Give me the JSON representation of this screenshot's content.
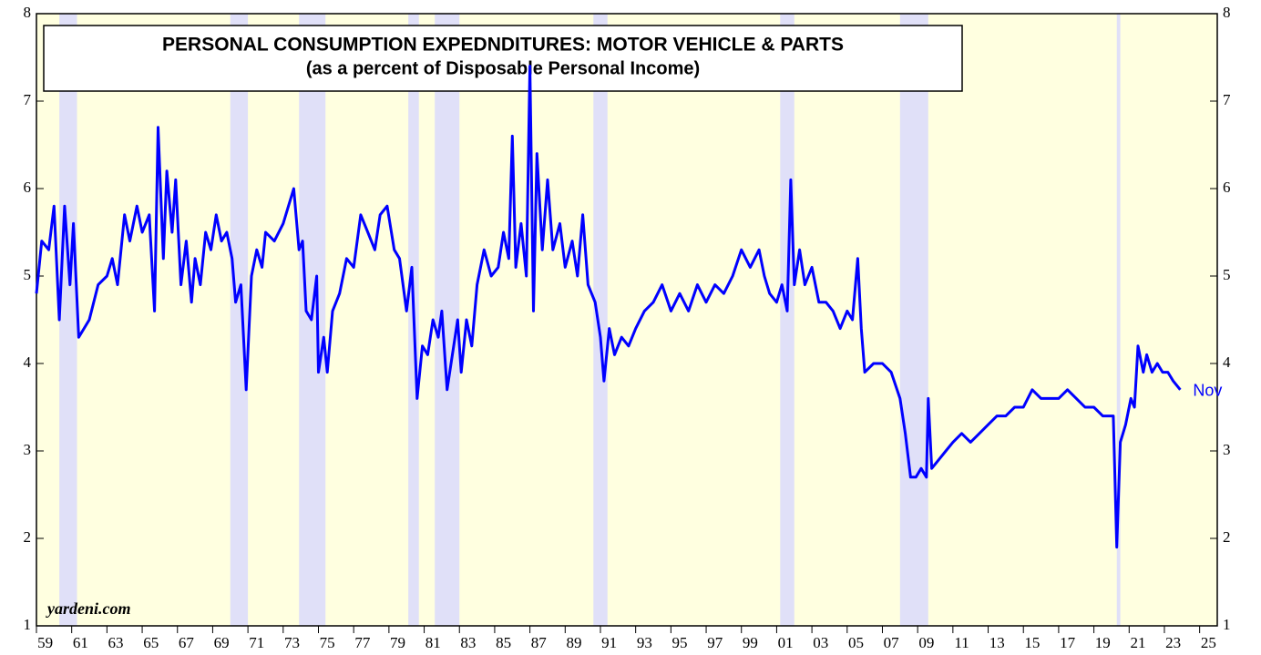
{
  "chart_data": {
    "type": "line",
    "title": "PERSONAL CONSUMPTION EXPEDNDITURES: MOTOR VEHICLE & PARTS",
    "subtitle": "(as a percent of Disposable Personal Income)",
    "source": "yardeni.com",
    "annotation": "Nov",
    "color": "#0000ff",
    "grid": false,
    "xlim": [
      1959,
      2026
    ],
    "ylim": [
      1,
      8
    ],
    "yticks": [
      1,
      2,
      3,
      4,
      5,
      6,
      7,
      8
    ],
    "xticks": [
      {
        "value": 1959,
        "label": "59"
      },
      {
        "value": 1961,
        "label": "61"
      },
      {
        "value": 1963,
        "label": "63"
      },
      {
        "value": 1965,
        "label": "65"
      },
      {
        "value": 1967,
        "label": "67"
      },
      {
        "value": 1969,
        "label": "69"
      },
      {
        "value": 1971,
        "label": "71"
      },
      {
        "value": 1973,
        "label": "73"
      },
      {
        "value": 1975,
        "label": "75"
      },
      {
        "value": 1977,
        "label": "77"
      },
      {
        "value": 1979,
        "label": "79"
      },
      {
        "value": 1981,
        "label": "81"
      },
      {
        "value": 1983,
        "label": "83"
      },
      {
        "value": 1985,
        "label": "85"
      },
      {
        "value": 1987,
        "label": "87"
      },
      {
        "value": 1989,
        "label": "89"
      },
      {
        "value": 1991,
        "label": "91"
      },
      {
        "value": 1993,
        "label": "93"
      },
      {
        "value": 1995,
        "label": "95"
      },
      {
        "value": 1997,
        "label": "97"
      },
      {
        "value": 1999,
        "label": "99"
      },
      {
        "value": 2001,
        "label": "01"
      },
      {
        "value": 2003,
        "label": "03"
      },
      {
        "value": 2005,
        "label": "05"
      },
      {
        "value": 2007,
        "label": "07"
      },
      {
        "value": 2009,
        "label": "09"
      },
      {
        "value": 2011,
        "label": "11"
      },
      {
        "value": 2013,
        "label": "13"
      },
      {
        "value": 2015,
        "label": "15"
      },
      {
        "value": 2017,
        "label": "17"
      },
      {
        "value": 2019,
        "label": "19"
      },
      {
        "value": 2021,
        "label": "21"
      },
      {
        "value": 2023,
        "label": "23"
      },
      {
        "value": 2025,
        "label": "25"
      }
    ],
    "recessions": [
      [
        1960.3,
        1961.3
      ],
      [
        1970.0,
        1971.0
      ],
      [
        1973.9,
        1975.4
      ],
      [
        1980.1,
        1980.7
      ],
      [
        1981.6,
        1983.0
      ],
      [
        1990.6,
        1991.4
      ],
      [
        2001.2,
        2002.0
      ],
      [
        2008.0,
        2009.6
      ],
      [
        2020.3,
        2020.5
      ]
    ],
    "x": [
      1959.0,
      1959.3,
      1959.7,
      1960.0,
      1960.3,
      1960.6,
      1960.9,
      1961.1,
      1961.4,
      1961.7,
      1962.0,
      1962.5,
      1963.0,
      1963.3,
      1963.6,
      1964.0,
      1964.3,
      1964.7,
      1965.0,
      1965.4,
      1965.7,
      1965.9,
      1966.2,
      1966.4,
      1966.7,
      1966.9,
      1967.2,
      1967.5,
      1967.8,
      1968.0,
      1968.3,
      1968.6,
      1968.9,
      1969.2,
      1969.5,
      1969.8,
      1970.1,
      1970.3,
      1970.6,
      1970.9,
      1971.2,
      1971.5,
      1971.8,
      1972.0,
      1972.5,
      1973.0,
      1973.3,
      1973.6,
      1973.9,
      1974.1,
      1974.3,
      1974.6,
      1974.9,
      1975.0,
      1975.3,
      1975.5,
      1975.8,
      1976.2,
      1976.6,
      1977.0,
      1977.4,
      1977.8,
      1978.2,
      1978.5,
      1978.9,
      1979.3,
      1979.6,
      1980.0,
      1980.3,
      1980.6,
      1980.9,
      1981.2,
      1981.5,
      1981.8,
      1982.0,
      1982.3,
      1982.6,
      1982.9,
      1983.1,
      1983.4,
      1983.7,
      1984.0,
      1984.4,
      1984.8,
      1985.2,
      1985.5,
      1985.8,
      1986.0,
      1986.2,
      1986.5,
      1986.8,
      1987.0,
      1987.2,
      1987.4,
      1987.7,
      1988.0,
      1988.3,
      1988.7,
      1989.0,
      1989.4,
      1989.7,
      1990.0,
      1990.3,
      1990.7,
      1991.0,
      1991.2,
      1991.5,
      1991.8,
      1992.2,
      1992.6,
      1993.0,
      1993.5,
      1994.0,
      1994.5,
      1995.0,
      1995.5,
      1996.0,
      1996.5,
      1997.0,
      1997.5,
      1998.0,
      1998.5,
      1999.0,
      1999.5,
      2000.0,
      2000.3,
      2000.6,
      2001.0,
      2001.3,
      2001.6,
      2001.8,
      2002.0,
      2002.3,
      2002.6,
      2003.0,
      2003.4,
      2003.8,
      2004.2,
      2004.6,
      2005.0,
      2005.3,
      2005.6,
      2005.8,
      2006.0,
      2006.5,
      2007.0,
      2007.5,
      2008.0,
      2008.3,
      2008.6,
      2008.9,
      2009.2,
      2009.5,
      2009.6,
      2009.8,
      2010.2,
      2010.6,
      2011.0,
      2011.5,
      2012.0,
      2012.5,
      2013.0,
      2013.5,
      2014.0,
      2014.5,
      2015.0,
      2015.5,
      2016.0,
      2016.5,
      2017.0,
      2017.5,
      2018.0,
      2018.5,
      2019.0,
      2019.5,
      2019.9,
      2020.1,
      2020.3,
      2020.5,
      2020.8,
      2021.1,
      2021.3,
      2021.5,
      2021.8,
      2022.0,
      2022.3,
      2022.6,
      2022.9,
      2023.2,
      2023.5,
      2023.9
    ],
    "values": [
      4.8,
      5.4,
      5.3,
      5.8,
      4.5,
      5.8,
      4.9,
      5.6,
      4.3,
      4.4,
      4.5,
      4.9,
      5.0,
      5.2,
      4.9,
      5.7,
      5.4,
      5.8,
      5.5,
      5.7,
      4.6,
      6.7,
      5.2,
      6.2,
      5.5,
      6.1,
      4.9,
      5.4,
      4.7,
      5.2,
      4.9,
      5.5,
      5.3,
      5.7,
      5.4,
      5.5,
      5.2,
      4.7,
      4.9,
      3.7,
      5.0,
      5.3,
      5.1,
      5.5,
      5.4,
      5.6,
      5.8,
      6.0,
      5.3,
      5.4,
      4.6,
      4.5,
      5.0,
      3.9,
      4.3,
      3.9,
      4.6,
      4.8,
      5.2,
      5.1,
      5.7,
      5.5,
      5.3,
      5.7,
      5.8,
      5.3,
      5.2,
      4.6,
      5.1,
      3.6,
      4.2,
      4.1,
      4.5,
      4.3,
      4.6,
      3.7,
      4.1,
      4.5,
      3.9,
      4.5,
      4.2,
      4.9,
      5.3,
      5.0,
      5.1,
      5.5,
      5.2,
      6.6,
      5.1,
      5.6,
      5.0,
      7.4,
      4.6,
      6.4,
      5.3,
      6.1,
      5.3,
      5.6,
      5.1,
      5.4,
      5.0,
      5.7,
      4.9,
      4.7,
      4.3,
      3.8,
      4.4,
      4.1,
      4.3,
      4.2,
      4.4,
      4.6,
      4.7,
      4.9,
      4.6,
      4.8,
      4.6,
      4.9,
      4.7,
      4.9,
      4.8,
      5.0,
      5.3,
      5.1,
      5.3,
      5.0,
      4.8,
      4.7,
      4.9,
      4.6,
      6.1,
      4.9,
      5.3,
      4.9,
      5.1,
      4.7,
      4.7,
      4.6,
      4.4,
      4.6,
      4.5,
      5.2,
      4.4,
      3.9,
      4.0,
      4.0,
      3.9,
      3.6,
      3.2,
      2.7,
      2.7,
      2.8,
      2.7,
      3.6,
      2.8,
      2.9,
      3.0,
      3.1,
      3.2,
      3.1,
      3.2,
      3.3,
      3.4,
      3.4,
      3.5,
      3.5,
      3.7,
      3.6,
      3.6,
      3.6,
      3.7,
      3.6,
      3.5,
      3.5,
      3.4,
      3.4,
      3.4,
      1.9,
      3.1,
      3.3,
      3.6,
      3.5,
      4.2,
      3.9,
      4.1,
      3.9,
      4.0,
      3.9,
      3.9,
      3.8,
      3.7
    ]
  }
}
